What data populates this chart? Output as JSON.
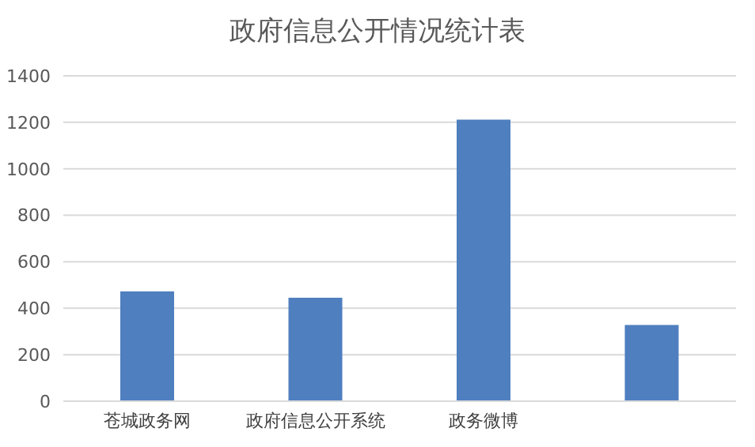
{
  "chart_data": {
    "type": "bar",
    "title": "政府信息公开情况统计表",
    "categories": [
      "苍城政务网",
      "政府信息公开系统",
      "政务微博",
      null
    ],
    "values": [
      472,
      445,
      1211,
      328
    ],
    "color": "#4f7fbf",
    "ylim": [
      0,
      1400
    ],
    "yticks": [
      0,
      200,
      400,
      600,
      800,
      1000,
      1200,
      1400
    ],
    "grid": "y"
  }
}
